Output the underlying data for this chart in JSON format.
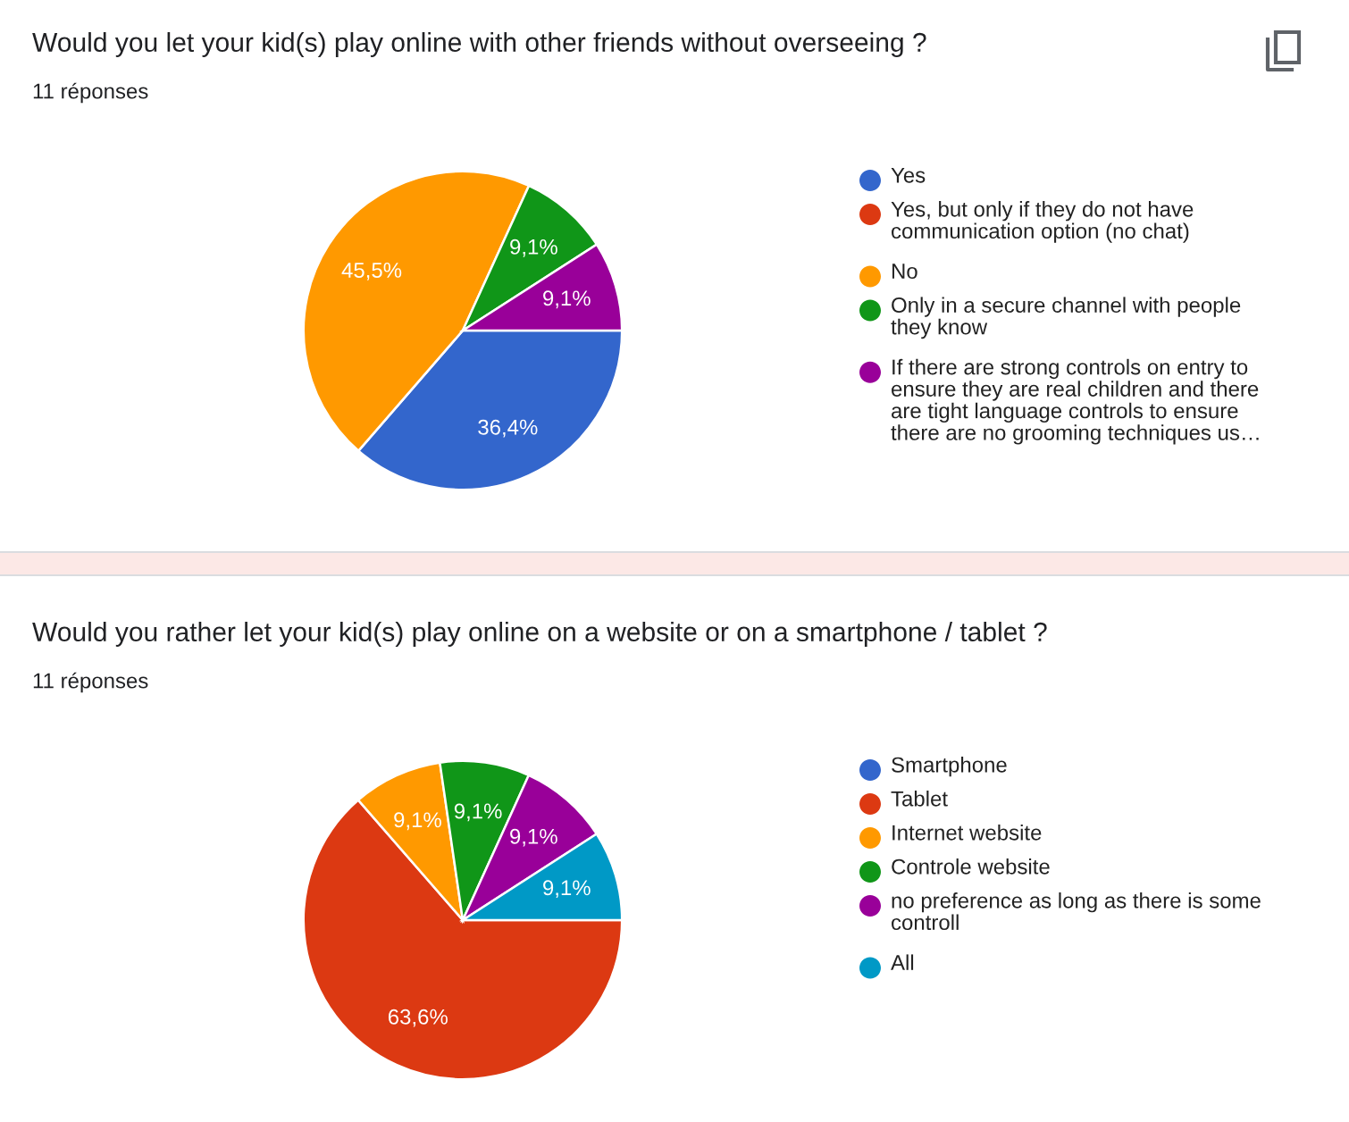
{
  "chart_data": [
    {
      "type": "pie",
      "title": "Would you let your kid(s) play online with other friends without overseeing ?",
      "subtitle": "11 réponses",
      "categories": [
        "Yes",
        "Yes, but only if they do not have communication option (no chat)",
        "No",
        "Only in a secure channel with people they know",
        "If there are strong controls on entry to ensure they are real children and there are tight language controls to ensure there are no grooming techniques us…"
      ],
      "values": [
        36.4,
        0,
        45.5,
        9.1,
        9.1
      ],
      "colors": [
        "#3366cc",
        "#dc3912",
        "#ff9900",
        "#109618",
        "#990099"
      ],
      "value_labels": [
        "36,4%",
        null,
        "45,5%",
        "9,1%",
        "9,1%"
      ],
      "legend": "right"
    },
    {
      "type": "pie",
      "title": "Would you rather let your kid(s) play online on a website or on a smartphone / tablet ?",
      "subtitle": "11 réponses",
      "categories": [
        "Smartphone",
        "Tablet",
        "Internet website",
        "Controle website",
        "no preference as long as there is some controll",
        "All"
      ],
      "values": [
        0,
        63.6,
        9.1,
        9.1,
        9.1,
        9.1
      ],
      "colors": [
        "#3366cc",
        "#dc3912",
        "#ff9900",
        "#109618",
        "#990099",
        "#0099c6"
      ],
      "value_labels": [
        null,
        "63,6%",
        "9,1%",
        "9,1%",
        "9,1%",
        "9,1%"
      ],
      "legend": "right"
    }
  ]
}
